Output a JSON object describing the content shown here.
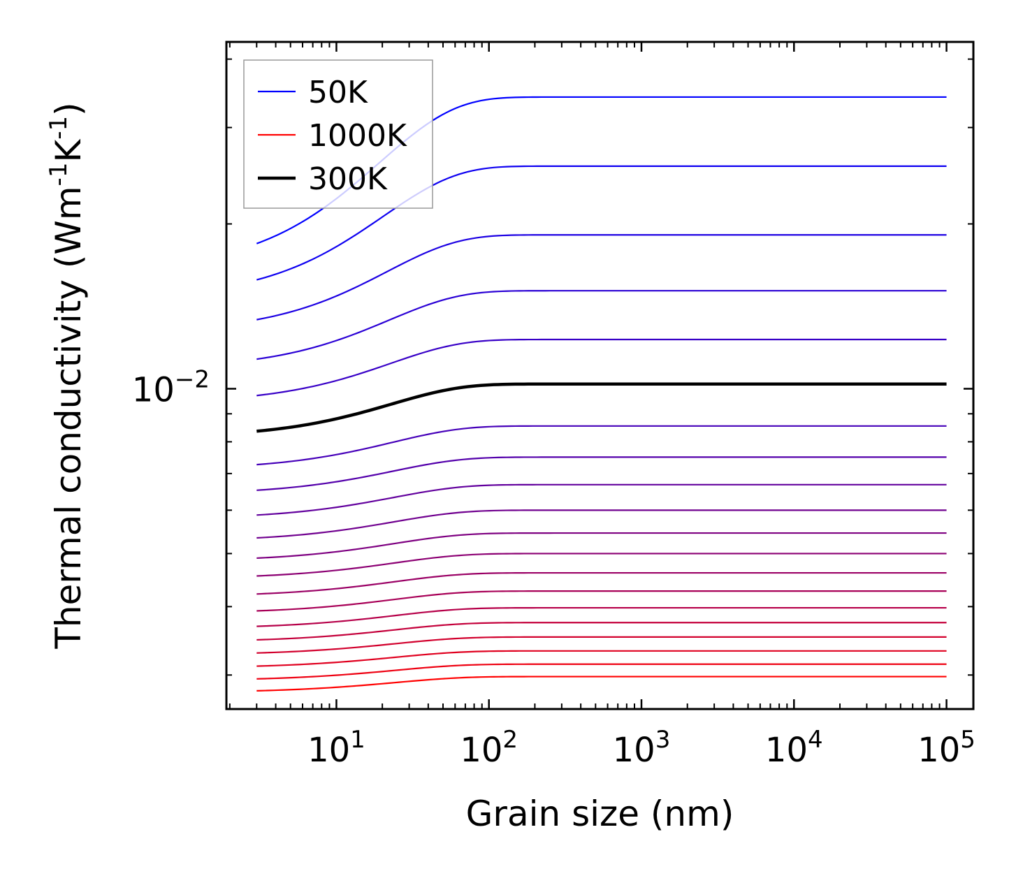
{
  "chart_data": {
    "type": "line",
    "title": "",
    "xlabel": "Grain size (nm)",
    "ylabel": "Thermal conductivity (Wm",
    "ylabel_unit_parts": [
      "-1",
      "K",
      "-1",
      ")"
    ],
    "xscale": "log",
    "yscale": "log",
    "xlim": [
      1.9,
      150000
    ],
    "ylim": [
      0.0026,
      0.043
    ],
    "x_ticks": [
      {
        "base": "10",
        "exp": "1"
      },
      {
        "base": "10",
        "exp": "2"
      },
      {
        "base": "10",
        "exp": "3"
      },
      {
        "base": "10",
        "exp": "4"
      },
      {
        "base": "10",
        "exp": "5"
      }
    ],
    "y_ticks": [
      {
        "base": "10",
        "exp": "−2"
      }
    ],
    "x_range": [
      3,
      100000
    ],
    "curve_model": "k(L) = k_inf * (1 - f*exp(-(L-3)/Lc))",
    "series": [
      {
        "name": "50K",
        "k_inf": 0.0341,
        "drop": 0.46,
        "color": "#0000ff",
        "highlight": false
      },
      {
        "name": "",
        "k_inf": 0.0255,
        "drop": 0.38,
        "color": "#0e00f1",
        "highlight": false
      },
      {
        "name": "",
        "k_inf": 0.0191,
        "drop": 0.3,
        "color": "#1c00e3",
        "highlight": false
      },
      {
        "name": "",
        "k_inf": 0.0151,
        "drop": 0.25,
        "color": "#2a00d5",
        "highlight": false
      },
      {
        "name": "",
        "k_inf": 0.0123,
        "drop": 0.21,
        "color": "#3800c7",
        "highlight": false
      },
      {
        "name": "300K",
        "k_inf": 0.0102,
        "drop": 0.18,
        "color": "#000000",
        "highlight": true
      },
      {
        "name": "",
        "k_inf": 0.00855,
        "drop": 0.15,
        "color": "#4600b9",
        "highlight": false
      },
      {
        "name": "",
        "k_inf": 0.0075,
        "drop": 0.13,
        "color": "#5400ab",
        "highlight": false
      },
      {
        "name": "",
        "k_inf": 0.00668,
        "drop": 0.12,
        "color": "#62009d",
        "highlight": false
      },
      {
        "name": "",
        "k_inf": 0.006,
        "drop": 0.11,
        "color": "#70008f",
        "highlight": false
      },
      {
        "name": "",
        "k_inf": 0.00545,
        "drop": 0.1,
        "color": "#7e0081",
        "highlight": false
      },
      {
        "name": "",
        "k_inf": 0.005,
        "drop": 0.09,
        "color": "#8c0073",
        "highlight": false
      },
      {
        "name": "",
        "k_inf": 0.00461,
        "drop": 0.085,
        "color": "#9a0065",
        "highlight": false
      },
      {
        "name": "",
        "k_inf": 0.00427,
        "drop": 0.08,
        "color": "#a80057",
        "highlight": false
      },
      {
        "name": "",
        "k_inf": 0.00398,
        "drop": 0.075,
        "color": "#b60049",
        "highlight": false
      },
      {
        "name": "",
        "k_inf": 0.00374,
        "drop": 0.07,
        "color": "#c4003b",
        "highlight": false
      },
      {
        "name": "",
        "k_inf": 0.00352,
        "drop": 0.065,
        "color": "#d2002d",
        "highlight": false
      },
      {
        "name": "",
        "k_inf": 0.00332,
        "drop": 0.062,
        "color": "#e0001f",
        "highlight": false
      },
      {
        "name": "",
        "k_inf": 0.00314,
        "drop": 0.06,
        "color": "#ee0011",
        "highlight": false
      },
      {
        "name": "1000K",
        "k_inf": 0.00298,
        "drop": 0.058,
        "color": "#ff0000",
        "highlight": false
      }
    ],
    "legend": {
      "placement": "top-left",
      "entries": [
        {
          "label": "50K",
          "color": "#0000ff",
          "bold": false
        },
        {
          "label": "1000K",
          "color": "#ff0000",
          "bold": false
        },
        {
          "label": "300K",
          "color": "#000000",
          "bold": true
        }
      ]
    }
  }
}
